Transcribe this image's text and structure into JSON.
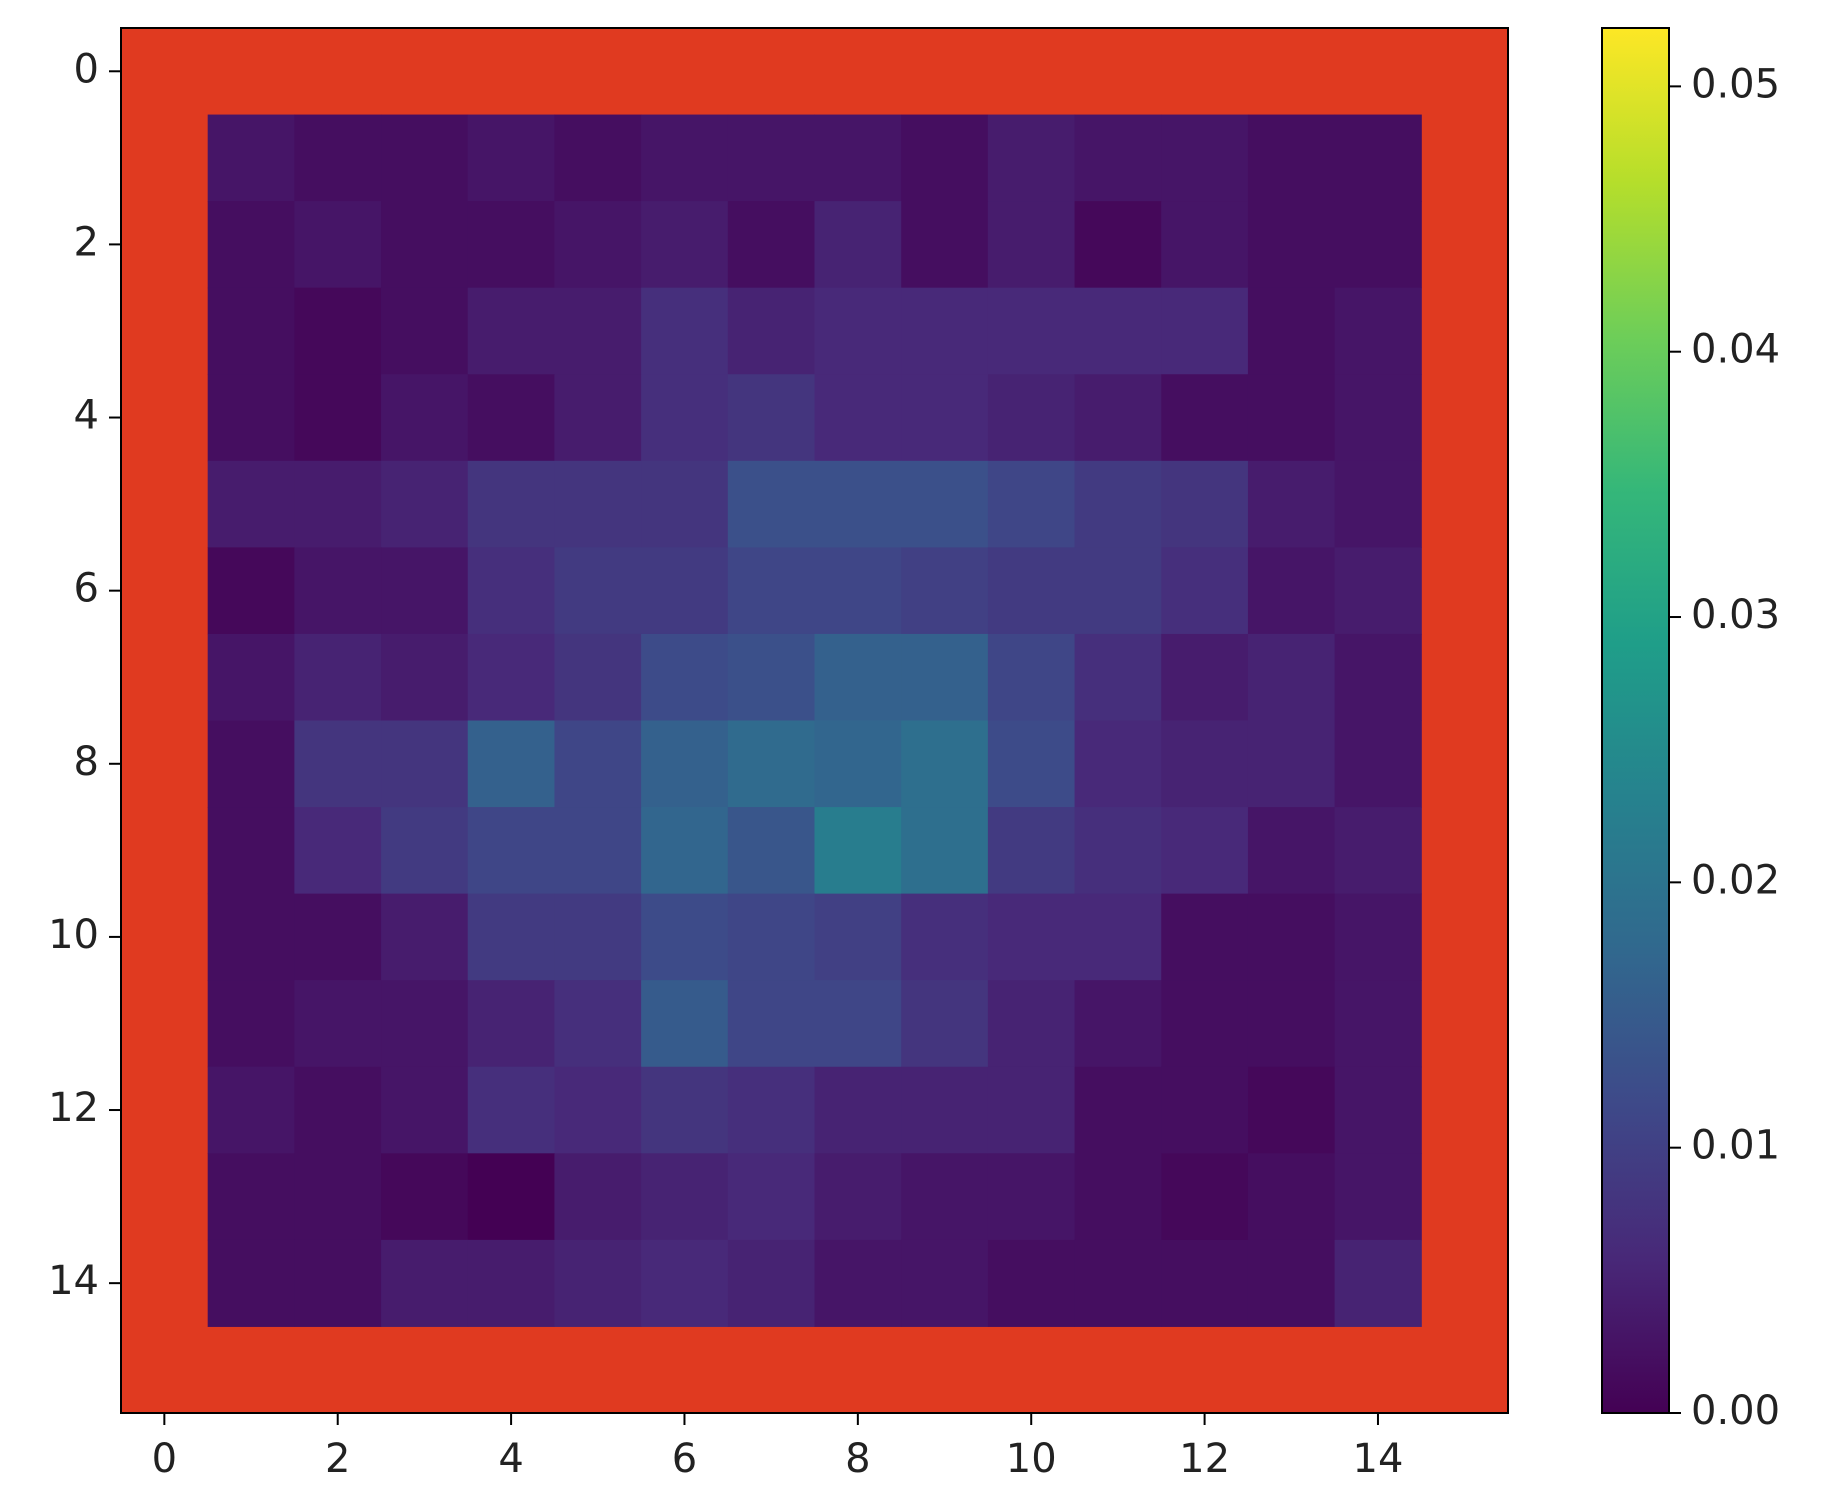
{
  "chart_data": {
    "type": "heatmap",
    "colormap": "viridis",
    "bad_color": "#e03a20",
    "xlim": [
      -0.5,
      15.5
    ],
    "ylim": [
      15.5,
      -0.5
    ],
    "xticks": [
      0,
      2,
      4,
      6,
      8,
      10,
      12,
      14
    ],
    "yticks": [
      0,
      2,
      4,
      6,
      8,
      10,
      12,
      14
    ],
    "clim": [
      0,
      0.0522
    ],
    "cticks": [
      {
        "value": 0,
        "label": "0.00"
      },
      0.01,
      0.02,
      0.03,
      0.04,
      0.05
    ],
    "z": [
      [
        null,
        null,
        null,
        null,
        null,
        null,
        null,
        null,
        null,
        null,
        null,
        null,
        null,
        null,
        null,
        null
      ],
      [
        null,
        0.003,
        0.002,
        0.002,
        0.003,
        0.002,
        0.003,
        0.003,
        0.003,
        0.002,
        0.004,
        0.003,
        0.003,
        0.002,
        0.002,
        null
      ],
      [
        null,
        0.002,
        0.003,
        0.002,
        0.002,
        0.003,
        0.004,
        0.002,
        0.005,
        0.002,
        0.004,
        0.001,
        0.003,
        0.002,
        0.002,
        null
      ],
      [
        null,
        0.002,
        0.001,
        0.002,
        0.004,
        0.004,
        0.007,
        0.005,
        0.006,
        0.006,
        0.006,
        0.006,
        0.006,
        0.002,
        0.003,
        null
      ],
      [
        null,
        0.002,
        0.001,
        0.003,
        0.002,
        0.004,
        0.007,
        0.008,
        0.006,
        0.006,
        0.005,
        0.004,
        0.002,
        0.002,
        0.003,
        null
      ],
      [
        null,
        0.004,
        0.004,
        0.005,
        0.008,
        0.008,
        0.008,
        0.013,
        0.013,
        0.013,
        0.011,
        0.009,
        0.008,
        0.004,
        0.003,
        null
      ],
      [
        null,
        0.001,
        0.003,
        0.003,
        0.007,
        0.009,
        0.009,
        0.011,
        0.011,
        0.01,
        0.009,
        0.009,
        0.007,
        0.003,
        0.004,
        null
      ],
      [
        null,
        0.003,
        0.005,
        0.004,
        0.006,
        0.008,
        0.012,
        0.013,
        0.016,
        0.016,
        0.011,
        0.007,
        0.004,
        0.005,
        0.003,
        null
      ],
      [
        null,
        0.002,
        0.008,
        0.008,
        0.016,
        0.011,
        0.016,
        0.018,
        0.017,
        0.019,
        0.012,
        0.006,
        0.005,
        0.005,
        0.003,
        null
      ],
      [
        null,
        0.002,
        0.006,
        0.009,
        0.011,
        0.011,
        0.017,
        0.014,
        0.022,
        0.019,
        0.009,
        0.007,
        0.006,
        0.003,
        0.004,
        null
      ],
      [
        null,
        0.002,
        0.002,
        0.004,
        0.009,
        0.009,
        0.012,
        0.011,
        0.01,
        0.007,
        0.006,
        0.006,
        0.002,
        0.002,
        0.003,
        null
      ],
      [
        null,
        0.002,
        0.003,
        0.003,
        0.005,
        0.007,
        0.015,
        0.011,
        0.011,
        0.008,
        0.005,
        0.003,
        0.002,
        0.002,
        0.003,
        null
      ],
      [
        null,
        0.003,
        0.002,
        0.003,
        0.007,
        0.006,
        0.008,
        0.007,
        0.005,
        0.005,
        0.005,
        0.002,
        0.002,
        0.001,
        0.003,
        null
      ],
      [
        null,
        0.002,
        0.002,
        0.001,
        0.0,
        0.004,
        0.005,
        0.006,
        0.004,
        0.003,
        0.003,
        0.002,
        0.001,
        0.002,
        0.003,
        null
      ],
      [
        null,
        0.002,
        0.002,
        0.004,
        0.004,
        0.005,
        0.006,
        0.005,
        0.003,
        0.003,
        0.002,
        0.002,
        0.002,
        0.002,
        0.005,
        null
      ],
      [
        null,
        null,
        null,
        null,
        null,
        null,
        null,
        null,
        null,
        null,
        null,
        null,
        null,
        null,
        null,
        null
      ]
    ]
  }
}
